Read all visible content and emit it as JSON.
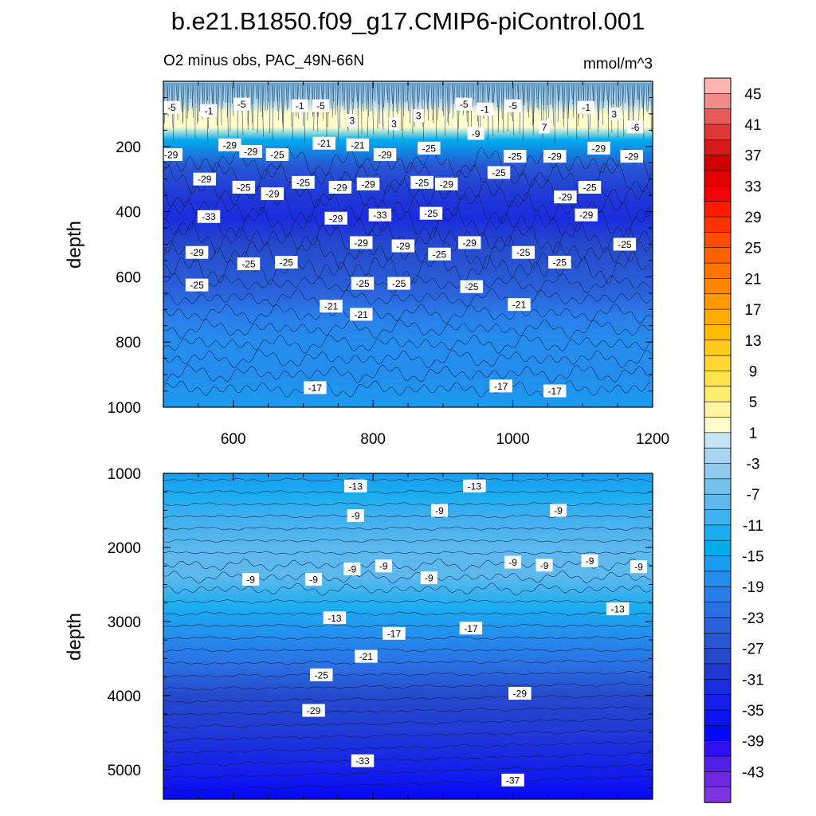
{
  "figure": {
    "title": "b.e21.B1850.f09_g17.CMIP6-piControl.001",
    "subtitle_left": "O2 minus obs, PAC_49N-66N",
    "subtitle_right": "mmol/m^3"
  },
  "chart_data": [
    {
      "type": "heatmap",
      "panel": "upper",
      "title": "O2 minus obs, PAC_49N-66N",
      "units": "mmol/m^3",
      "xlabel": "",
      "ylabel": "depth",
      "xlim": [
        500,
        1200
      ],
      "ylim": [
        1000,
        0
      ],
      "x_ticks": [
        "600",
        "800",
        "1000",
        "1200"
      ],
      "y_ticks": [
        "200",
        "400",
        "600",
        "800",
        "1000"
      ],
      "field_by_depth": [
        {
          "depth": 20,
          "value": -4
        },
        {
          "depth": 60,
          "value": -2
        },
        {
          "depth": 100,
          "value": 3
        },
        {
          "depth": 140,
          "value": 3
        },
        {
          "depth": 180,
          "value": -14
        },
        {
          "depth": 260,
          "value": -26
        },
        {
          "depth": 350,
          "value": -29
        },
        {
          "depth": 420,
          "value": -31
        },
        {
          "depth": 500,
          "value": -28
        },
        {
          "depth": 580,
          "value": -25
        },
        {
          "depth": 650,
          "value": -23
        },
        {
          "depth": 720,
          "value": -20
        },
        {
          "depth": 800,
          "value": -18
        },
        {
          "depth": 900,
          "value": -17
        },
        {
          "depth": 1000,
          "value": -16
        }
      ],
      "contour_labels": [
        {
          "x": 512,
          "depth": 80,
          "text": "-5"
        },
        {
          "x": 565,
          "depth": 90,
          "text": "-1"
        },
        {
          "x": 612,
          "depth": 70,
          "text": "-5"
        },
        {
          "x": 695,
          "depth": 75,
          "text": "-1"
        },
        {
          "x": 725,
          "depth": 75,
          "text": "-5"
        },
        {
          "x": 770,
          "depth": 120,
          "text": "3"
        },
        {
          "x": 830,
          "depth": 130,
          "text": "3"
        },
        {
          "x": 865,
          "depth": 105,
          "text": "3"
        },
        {
          "x": 930,
          "depth": 70,
          "text": "-5"
        },
        {
          "x": 960,
          "depth": 85,
          "text": "-1"
        },
        {
          "x": 1000,
          "depth": 75,
          "text": "-5"
        },
        {
          "x": 1045,
          "depth": 140,
          "text": "7"
        },
        {
          "x": 1105,
          "depth": 80,
          "text": "-1"
        },
        {
          "x": 1145,
          "depth": 100,
          "text": "3"
        },
        {
          "x": 1175,
          "depth": 140,
          "text": "-6"
        },
        {
          "x": 511,
          "depth": 225,
          "text": "-29"
        },
        {
          "x": 595,
          "depth": 195,
          "text": "-29"
        },
        {
          "x": 625,
          "depth": 215,
          "text": "-29"
        },
        {
          "x": 663,
          "depth": 225,
          "text": "-25"
        },
        {
          "x": 730,
          "depth": 190,
          "text": "-21"
        },
        {
          "x": 778,
          "depth": 195,
          "text": "-21"
        },
        {
          "x": 817,
          "depth": 225,
          "text": "-29"
        },
        {
          "x": 880,
          "depth": 205,
          "text": "-25"
        },
        {
          "x": 947,
          "depth": 160,
          "text": "-9"
        },
        {
          "x": 1003,
          "depth": 230,
          "text": "-25"
        },
        {
          "x": 1060,
          "depth": 230,
          "text": "-29"
        },
        {
          "x": 1123,
          "depth": 205,
          "text": "-29"
        },
        {
          "x": 1170,
          "depth": 230,
          "text": "-29"
        },
        {
          "x": 559,
          "depth": 300,
          "text": "-29"
        },
        {
          "x": 615,
          "depth": 325,
          "text": "-25"
        },
        {
          "x": 656,
          "depth": 345,
          "text": "-29"
        },
        {
          "x": 700,
          "depth": 310,
          "text": "-25"
        },
        {
          "x": 753,
          "depth": 325,
          "text": "-29"
        },
        {
          "x": 793,
          "depth": 315,
          "text": "-29"
        },
        {
          "x": 870,
          "depth": 310,
          "text": "-25"
        },
        {
          "x": 905,
          "depth": 315,
          "text": "-29"
        },
        {
          "x": 980,
          "depth": 280,
          "text": "-25"
        },
        {
          "x": 1075,
          "depth": 355,
          "text": "-29"
        },
        {
          "x": 1110,
          "depth": 325,
          "text": "-25"
        },
        {
          "x": 565,
          "depth": 415,
          "text": "-33"
        },
        {
          "x": 747,
          "depth": 420,
          "text": "-29"
        },
        {
          "x": 810,
          "depth": 410,
          "text": "-33"
        },
        {
          "x": 883,
          "depth": 405,
          "text": "-25"
        },
        {
          "x": 1105,
          "depth": 410,
          "text": "-29"
        },
        {
          "x": 548,
          "depth": 525,
          "text": "-29"
        },
        {
          "x": 622,
          "depth": 560,
          "text": "-25"
        },
        {
          "x": 676,
          "depth": 555,
          "text": "-25"
        },
        {
          "x": 783,
          "depth": 495,
          "text": "-29"
        },
        {
          "x": 843,
          "depth": 505,
          "text": "-29"
        },
        {
          "x": 895,
          "depth": 530,
          "text": "-25"
        },
        {
          "x": 938,
          "depth": 495,
          "text": "-29"
        },
        {
          "x": 1015,
          "depth": 525,
          "text": "-25"
        },
        {
          "x": 1067,
          "depth": 555,
          "text": "-25"
        },
        {
          "x": 1160,
          "depth": 500,
          "text": "-25"
        },
        {
          "x": 548,
          "depth": 625,
          "text": "-25"
        },
        {
          "x": 785,
          "depth": 620,
          "text": "-25"
        },
        {
          "x": 837,
          "depth": 620,
          "text": "-25"
        },
        {
          "x": 941,
          "depth": 630,
          "text": "-25"
        },
        {
          "x": 740,
          "depth": 690,
          "text": "-21"
        },
        {
          "x": 783,
          "depth": 715,
          "text": "-21"
        },
        {
          "x": 1009,
          "depth": 685,
          "text": "-21"
        },
        {
          "x": 717,
          "depth": 940,
          "text": "-17"
        },
        {
          "x": 983,
          "depth": 935,
          "text": "-17"
        },
        {
          "x": 1060,
          "depth": 950,
          "text": "-17"
        }
      ]
    },
    {
      "type": "heatmap",
      "panel": "lower",
      "xlabel": "",
      "ylabel": "depth",
      "xlim": [
        500,
        1200
      ],
      "ylim": [
        5400,
        1000
      ],
      "y_ticks": [
        "1000",
        "2000",
        "3000",
        "4000",
        "5000"
      ],
      "field_by_depth": [
        {
          "depth": 1000,
          "value": -15
        },
        {
          "depth": 1300,
          "value": -12
        },
        {
          "depth": 1600,
          "value": -9
        },
        {
          "depth": 2000,
          "value": -7
        },
        {
          "depth": 2400,
          "value": -8
        },
        {
          "depth": 2800,
          "value": -12
        },
        {
          "depth": 3200,
          "value": -17
        },
        {
          "depth": 3600,
          "value": -22
        },
        {
          "depth": 4000,
          "value": -27
        },
        {
          "depth": 4500,
          "value": -30
        },
        {
          "depth": 5000,
          "value": -34
        },
        {
          "depth": 5400,
          "value": -38
        }
      ],
      "contour_labels": [
        {
          "x": 775,
          "depth": 1170,
          "text": "-13"
        },
        {
          "x": 945,
          "depth": 1170,
          "text": "-13"
        },
        {
          "x": 775,
          "depth": 1570,
          "text": "-9"
        },
        {
          "x": 895,
          "depth": 1500,
          "text": "-9"
        },
        {
          "x": 1065,
          "depth": 1500,
          "text": "-9"
        },
        {
          "x": 625,
          "depth": 2430,
          "text": "-9"
        },
        {
          "x": 715,
          "depth": 2430,
          "text": "-9"
        },
        {
          "x": 770,
          "depth": 2290,
          "text": "-9"
        },
        {
          "x": 815,
          "depth": 2250,
          "text": "-9"
        },
        {
          "x": 880,
          "depth": 2410,
          "text": "-9"
        },
        {
          "x": 1000,
          "depth": 2200,
          "text": "-9"
        },
        {
          "x": 1045,
          "depth": 2240,
          "text": "-9"
        },
        {
          "x": 1110,
          "depth": 2180,
          "text": "-9"
        },
        {
          "x": 1180,
          "depth": 2260,
          "text": "-9"
        },
        {
          "x": 745,
          "depth": 2950,
          "text": "-13"
        },
        {
          "x": 830,
          "depth": 3160,
          "text": "-17"
        },
        {
          "x": 940,
          "depth": 3090,
          "text": "-17"
        },
        {
          "x": 1150,
          "depth": 2830,
          "text": "-13"
        },
        {
          "x": 790,
          "depth": 3470,
          "text": "-21"
        },
        {
          "x": 726,
          "depth": 3720,
          "text": "-25"
        },
        {
          "x": 1010,
          "depth": 3970,
          "text": "-29"
        },
        {
          "x": 715,
          "depth": 4200,
          "text": "-29"
        },
        {
          "x": 785,
          "depth": 4880,
          "text": "-33"
        },
        {
          "x": 1000,
          "depth": 5140,
          "text": "-37"
        }
      ]
    }
  ],
  "colorbar": {
    "labels": [
      "45",
      "41",
      "37",
      "33",
      "29",
      "25",
      "21",
      "17",
      "13",
      "9",
      "5",
      "1",
      "-3",
      "-7",
      "-11",
      "-15",
      "-19",
      "-23",
      "-27",
      "-31",
      "-35",
      "-39",
      "-43"
    ],
    "levels_top_down": [
      47,
      45,
      43,
      41,
      39,
      37,
      35,
      33,
      31,
      29,
      27,
      25,
      23,
      21,
      19,
      17,
      15,
      13,
      11,
      9,
      7,
      5,
      3,
      1,
      -1,
      -3,
      -5,
      -7,
      -9,
      -11,
      -13,
      -15,
      -17,
      -19,
      -21,
      -23,
      -25,
      -27,
      -29,
      -31,
      -33,
      -35,
      -37,
      -39,
      -41,
      -43,
      -45
    ],
    "colors_top_down": [
      "#ffb3b3",
      "#f18c8c",
      "#e85a5a",
      "#e03838",
      "#d91a1a",
      "#d10000",
      "#e20000",
      "#f40000",
      "#ff1a00",
      "#ff3300",
      "#ff4d00",
      "#ff6100",
      "#ff7300",
      "#ff8700",
      "#ff9900",
      "#ffab00",
      "#ffbb00",
      "#ffcb1a",
      "#ffd633",
      "#ffe24d",
      "#ffed70",
      "#fff5a0",
      "#fffccc",
      "#c5e3f5",
      "#a8d5f1",
      "#8fcbef",
      "#74c1ee",
      "#5cb8ee",
      "#41b0ef",
      "#1aaef0",
      "#00acee",
      "#1a9cf0",
      "#248ded",
      "#2a7ee9",
      "#2b6fe3",
      "#2a62db",
      "#2856d3",
      "#2549cc",
      "#2039d6",
      "#1a2ce0",
      "#1420ea",
      "#0d14f4",
      "#0808f8",
      "#3010f0",
      "#5020e8",
      "#6d28e0",
      "#8033e0"
    ]
  }
}
